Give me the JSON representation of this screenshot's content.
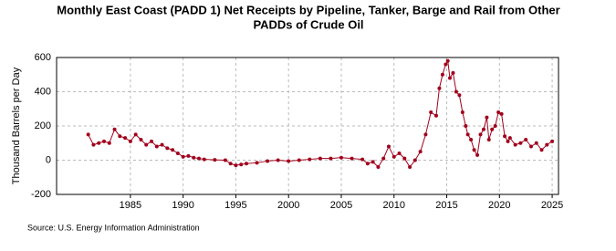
{
  "chart_data": {
    "type": "line",
    "title_lines": [
      "Monthly East Coast (PADD 1) Net Receipts by Pipeline, Tanker, Barge and Rail from Other",
      "PADDs of Crude Oil"
    ],
    "y_label": "Thousand Barrels per Day",
    "source": "Source: U.S. Energy Information Administration",
    "x": [
      1981.0,
      1981.5,
      1982.0,
      1982.5,
      1983.0,
      1983.5,
      1984.0,
      1984.5,
      1985.0,
      1985.5,
      1986.0,
      1986.5,
      1987.0,
      1987.5,
      1988.0,
      1988.5,
      1989.0,
      1989.5,
      1990.0,
      1990.5,
      1991.0,
      1991.5,
      1992.0,
      1993.0,
      1994.0,
      1994.5,
      1995.0,
      1995.5,
      1996.0,
      1997.0,
      1998.0,
      1999.0,
      2000.0,
      2001.0,
      2002.0,
      2003.0,
      2004.0,
      2005.0,
      2006.0,
      2007.0,
      2007.5,
      2008.0,
      2008.5,
      2009.0,
      2009.5,
      2010.0,
      2010.5,
      2011.0,
      2011.5,
      2012.0,
      2012.5,
      2013.0,
      2013.5,
      2014.0,
      2014.3,
      2014.6,
      2014.9,
      2015.1,
      2015.3,
      2015.6,
      2015.9,
      2016.2,
      2016.5,
      2016.8,
      2017.0,
      2017.3,
      2017.6,
      2017.9,
      2018.2,
      2018.5,
      2018.8,
      2019.0,
      2019.3,
      2019.6,
      2019.9,
      2020.2,
      2020.5,
      2020.8,
      2021.0,
      2021.5,
      2022.0,
      2022.5,
      2023.0,
      2023.5,
      2024.0,
      2024.5,
      2025.0
    ],
    "series": [
      {
        "name": "East Coast net receipts",
        "color": "#a0001c",
        "values": [
          150,
          90,
          100,
          110,
          100,
          180,
          140,
          130,
          110,
          150,
          120,
          90,
          110,
          80,
          90,
          70,
          60,
          40,
          20,
          25,
          15,
          10,
          5,
          2,
          0,
          -20,
          -30,
          -25,
          -20,
          -15,
          -5,
          0,
          -5,
          0,
          5,
          10,
          10,
          15,
          10,
          5,
          -20,
          -10,
          -40,
          10,
          80,
          20,
          40,
          10,
          -40,
          0,
          50,
          150,
          280,
          260,
          420,
          500,
          560,
          580,
          480,
          510,
          400,
          380,
          280,
          200,
          150,
          120,
          60,
          30,
          150,
          180,
          250,
          120,
          180,
          200,
          280,
          270,
          140,
          110,
          130,
          90,
          100,
          120,
          80,
          100,
          60,
          90,
          110
        ]
      }
    ],
    "xlim": [
      1978,
      2025.6
    ],
    "ylim": [
      -200,
      600
    ],
    "xticks": [
      1985,
      1990,
      1995,
      2000,
      2005,
      2010,
      2015,
      2020,
      2025
    ],
    "yticks": [
      -200,
      0,
      200,
      400,
      600
    ],
    "grid": true
  }
}
